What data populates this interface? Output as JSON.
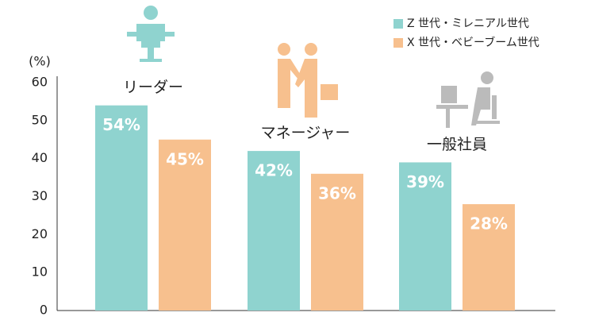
{
  "chart_data": {
    "type": "bar",
    "y_label": "(%)",
    "categories": [
      "リーダー",
      "マネージャー",
      "一般社員"
    ],
    "series": [
      {
        "name": "Z 世代・ミレニアル世代",
        "color": "#8fd3cf",
        "values": [
          54,
          42,
          39
        ],
        "value_labels": [
          "54%",
          "42%",
          "39%"
        ]
      },
      {
        "name": "X 世代・ベビーブーム世代",
        "color": "#f7c08e",
        "values": [
          45,
          36,
          28
        ],
        "value_labels": [
          "45%",
          "36%",
          "28%"
        ]
      }
    ],
    "ylim": [
      0,
      60
    ],
    "yticks": [
      0,
      10,
      20,
      30,
      40,
      50,
      60
    ],
    "grid": false,
    "legend": "top-right"
  }
}
